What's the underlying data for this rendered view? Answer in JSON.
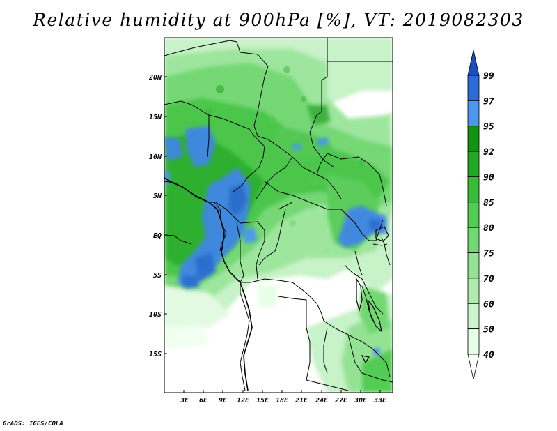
{
  "title": "Relative humidity at 900hPa [%], VT: 2019082303",
  "credit": "GrADS: IGES/COLA",
  "map": {
    "lat_labels": [
      "20N",
      "15N",
      "10N",
      "5N",
      "EQ",
      "5S",
      "10S",
      "15S"
    ],
    "lon_labels": [
      "3E",
      "6E",
      "9E",
      "12E",
      "15E",
      "18E",
      "21E",
      "24E",
      "27E",
      "30E",
      "33E"
    ]
  },
  "colorbar": {
    "levels": [
      "40",
      "50",
      "60",
      "70",
      "75",
      "80",
      "85",
      "90",
      "92",
      "95",
      "97",
      "99"
    ],
    "colors": [
      "#ffffff",
      "#e6ffe6",
      "#ccf5cc",
      "#b0ecb0",
      "#94e394",
      "#72d872",
      "#52cc52",
      "#38bc38",
      "#22a822",
      "#119411",
      "#4d96ee",
      "#2a6bd6",
      "#1a4fbf"
    ]
  }
}
